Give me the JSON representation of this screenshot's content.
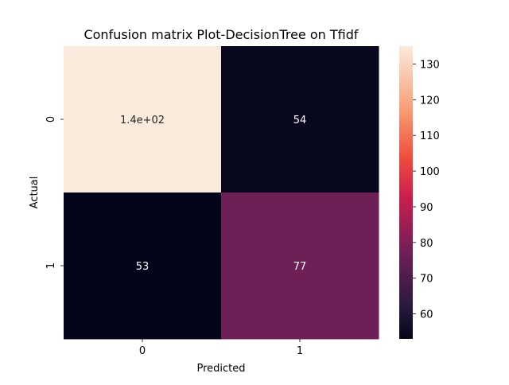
{
  "chart_data": {
    "type": "heatmap",
    "title": "Confusion matrix Plot-DecisionTree on Tfidf",
    "xlabel": "Predicted",
    "ylabel": "Actual",
    "x_categories": [
      "0",
      "1"
    ],
    "y_categories": [
      "0",
      "1"
    ],
    "values": [
      [
        135,
        54
      ],
      [
        53,
        77
      ]
    ],
    "annotations": [
      [
        "1.4e+02",
        "54"
      ],
      [
        "53",
        "77"
      ]
    ],
    "colorbar": {
      "range": [
        53,
        135
      ],
      "ticks": [
        "60",
        "70",
        "80",
        "90",
        "100",
        "110",
        "120",
        "130"
      ],
      "colormap": "rocket"
    }
  }
}
